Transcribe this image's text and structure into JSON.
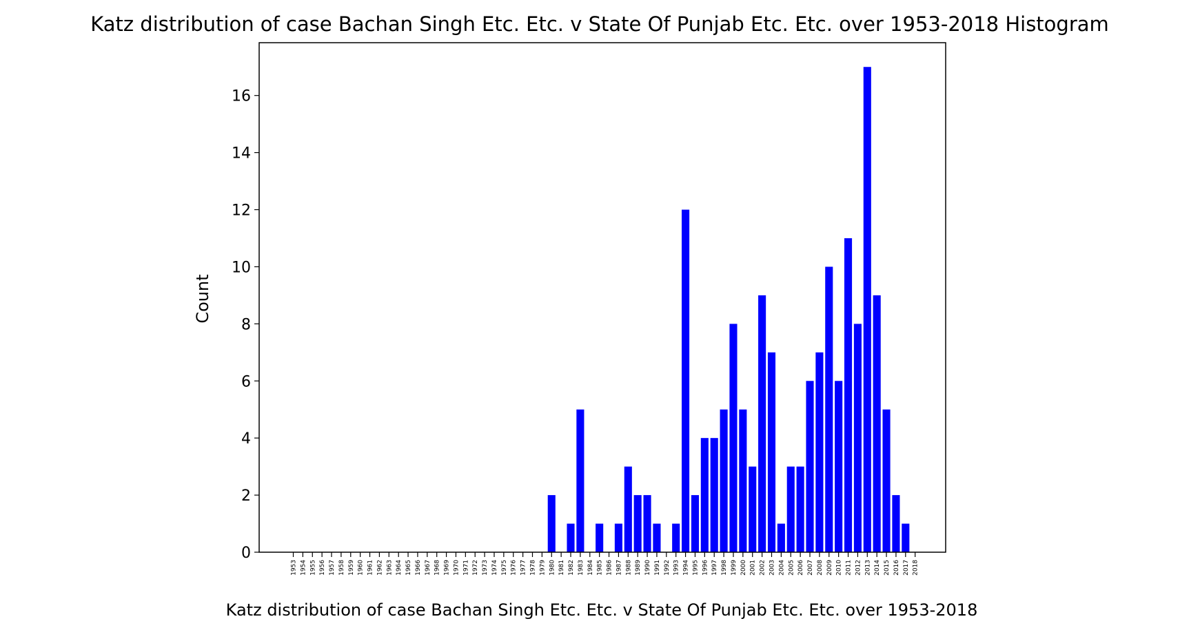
{
  "chart_data": {
    "type": "bar",
    "title": "Katz distribution of case Bachan Singh Etc. Etc. v State Of Punjab Etc. Etc. over 1953-2018 Histogram",
    "xlabel": "Katz distribution of case Bachan Singh Etc. Etc. v State Of Punjab Etc. Etc. over 1953-2018",
    "ylabel": "Count",
    "ylim": [
      0,
      17.85
    ],
    "yticks": [
      "0",
      "2",
      "4",
      "6",
      "8",
      "10",
      "12",
      "14",
      "16"
    ],
    "grid": false,
    "bar_color": "#0000ff",
    "categories": [
      "1953",
      "1954",
      "1955",
      "1956",
      "1957",
      "1958",
      "1959",
      "1960",
      "1961",
      "1962",
      "1963",
      "1964",
      "1965",
      "1966",
      "1967",
      "1968",
      "1969",
      "1970",
      "1971",
      "1972",
      "1973",
      "1974",
      "1975",
      "1976",
      "1977",
      "1978",
      "1979",
      "1980",
      "1981",
      "1982",
      "1983",
      "1984",
      "1985",
      "1986",
      "1987",
      "1988",
      "1989",
      "1990",
      "1991",
      "1992",
      "1993",
      "1994",
      "1995",
      "1996",
      "1997",
      "1998",
      "1999",
      "2000",
      "2001",
      "2002",
      "2003",
      "2004",
      "2005",
      "2006",
      "2007",
      "2008",
      "2009",
      "2010",
      "2011",
      "2012",
      "2013",
      "2014",
      "2015",
      "2016",
      "2017",
      "2018"
    ],
    "bars": [
      {
        "year": "1980",
        "value": 2
      },
      {
        "year": "1982",
        "value": 1
      },
      {
        "year": "1983",
        "value": 5
      },
      {
        "year": "1985",
        "value": 1
      },
      {
        "year": "1987",
        "value": 1
      },
      {
        "year": "1988",
        "value": 3
      },
      {
        "year": "1989",
        "value": 2
      },
      {
        "year": "1990",
        "value": 2
      },
      {
        "year": "1991",
        "value": 1
      },
      {
        "year": "1993",
        "value": 1
      },
      {
        "year": "1994",
        "value": 12
      },
      {
        "year": "1995",
        "value": 2
      },
      {
        "year": "1996",
        "value": 4
      },
      {
        "year": "1997",
        "value": 4
      },
      {
        "year": "1998",
        "value": 5
      },
      {
        "year": "1999",
        "value": 8
      },
      {
        "year": "2000",
        "value": 5
      },
      {
        "year": "2001",
        "value": 3
      },
      {
        "year": "2002",
        "value": 9
      },
      {
        "year": "2003",
        "value": 7
      },
      {
        "year": "2004",
        "value": 1
      },
      {
        "year": "2005",
        "value": 3
      },
      {
        "year": "2006",
        "value": 3
      },
      {
        "year": "2007",
        "value": 6
      },
      {
        "year": "2008",
        "value": 7
      },
      {
        "year": "2009",
        "value": 10
      },
      {
        "year": "2010",
        "value": 6
      },
      {
        "year": "2011",
        "value": 11
      },
      {
        "year": "2012",
        "value": 8
      },
      {
        "year": "2013",
        "value": 17
      },
      {
        "year": "2014",
        "value": 9
      },
      {
        "year": "2015",
        "value": 5
      },
      {
        "year": "2016",
        "value": 2
      },
      {
        "year": "2017",
        "value": 1
      }
    ]
  }
}
